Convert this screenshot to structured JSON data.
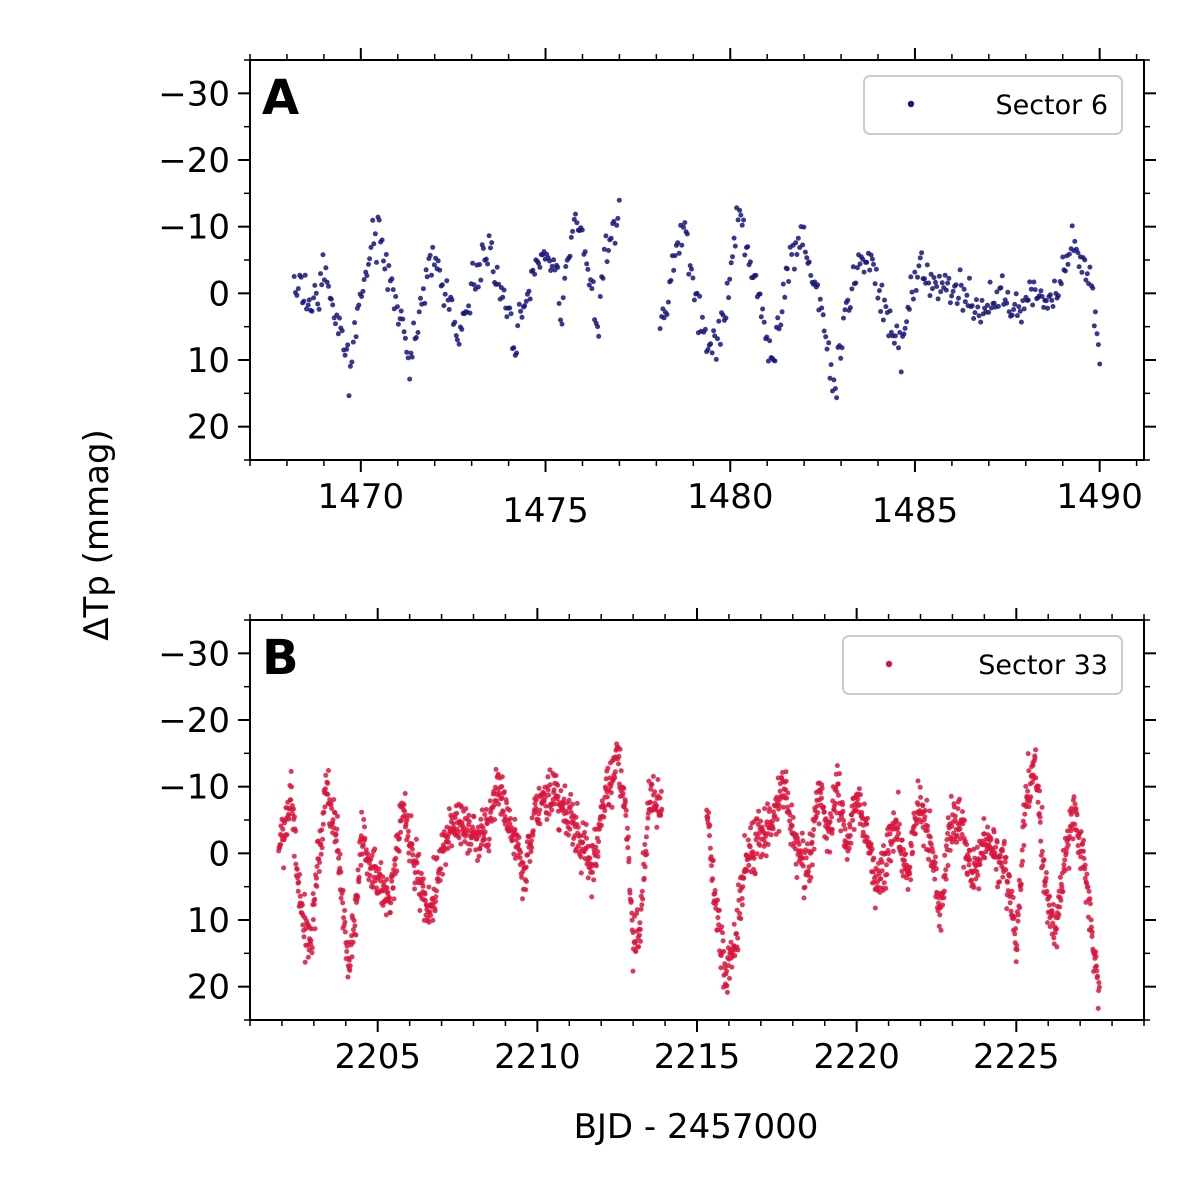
{
  "chart_data": [
    {
      "type": "scatter",
      "panel_label": "A",
      "series": [
        {
          "name": "Sector 6",
          "color": "#15157a"
        }
      ],
      "xlim": [
        1467.0,
        1491.2
      ],
      "ylim": [
        25,
        -35
      ],
      "xticks": [
        1470,
        1475,
        1480,
        1485,
        1490
      ],
      "xtick_labels": [
        "1470",
        "1475",
        "1480",
        "1485",
        "1490"
      ],
      "yticks": [
        -30,
        -20,
        -10,
        0,
        10,
        20
      ],
      "ytick_labels": [
        "−30",
        "−20",
        "−10",
        "0",
        "10",
        "20"
      ],
      "legend_position": "top-right",
      "segments": [
        {
          "x_start": 1468.2,
          "x_end": 1477.0,
          "shape": [
            [
              1468.2,
              -1
            ],
            [
              1468.7,
              1
            ],
            [
              1469.0,
              -2
            ],
            [
              1469.7,
              10
            ],
            [
              1470.4,
              -10
            ],
            [
              1470.8,
              -2
            ],
            [
              1471.3,
              10
            ],
            [
              1471.9,
              -6
            ],
            [
              1472.3,
              -1
            ],
            [
              1472.6,
              7
            ],
            [
              1473.4,
              -7
            ],
            [
              1473.7,
              -3
            ],
            [
              1474.2,
              8
            ],
            [
              1474.5,
              -1
            ],
            [
              1474.9,
              -6
            ],
            [
              1475.3,
              -4
            ],
            [
              1475.4,
              4
            ],
            [
              1475.8,
              -12
            ],
            [
              1476.1,
              -6
            ],
            [
              1476.4,
              6
            ],
            [
              1476.6,
              -5
            ],
            [
              1477.0,
              -13
            ]
          ]
        },
        {
          "x_start": 1478.1,
          "x_end": 1490.0,
          "shape": [
            [
              1478.1,
              6
            ],
            [
              1478.3,
              1
            ],
            [
              1478.5,
              -5
            ],
            [
              1478.8,
              -11
            ],
            [
              1478.9,
              -4
            ],
            [
              1479.2,
              5
            ],
            [
              1479.6,
              8
            ],
            [
              1479.9,
              2
            ],
            [
              1480.2,
              -12
            ],
            [
              1480.5,
              -7
            ],
            [
              1480.8,
              1
            ],
            [
              1481.1,
              11
            ],
            [
              1481.5,
              -1
            ],
            [
              1481.9,
              -10
            ],
            [
              1482.1,
              -4
            ],
            [
              1482.5,
              3
            ],
            [
              1482.8,
              15
            ],
            [
              1483.1,
              4
            ],
            [
              1483.4,
              -5
            ],
            [
              1483.8,
              -5
            ],
            [
              1484.2,
              3
            ],
            [
              1484.7,
              8
            ],
            [
              1484.9,
              -1
            ],
            [
              1485.2,
              -4
            ],
            [
              1485.7,
              0
            ],
            [
              1486.2,
              0
            ],
            [
              1486.8,
              3
            ],
            [
              1487.3,
              0
            ],
            [
              1487.8,
              3
            ],
            [
              1488.2,
              0
            ],
            [
              1488.8,
              1
            ],
            [
              1489.2,
              -7
            ],
            [
              1489.6,
              -4
            ],
            [
              1489.8,
              1
            ],
            [
              1490.0,
              9
            ]
          ]
        }
      ]
    },
    {
      "type": "scatter",
      "panel_label": "B",
      "series": [
        {
          "name": "Sector 33",
          "color": "#dc143c"
        }
      ],
      "xlim": [
        2201.0,
        2229.0
      ],
      "ylim": [
        25,
        -35
      ],
      "xticks": [
        2205,
        2210,
        2215,
        2220,
        2225
      ],
      "xtick_labels": [
        "2205",
        "2210",
        "2215",
        "2220",
        "2225"
      ],
      "yticks": [
        -30,
        -20,
        -10,
        0,
        10,
        20
      ],
      "ytick_labels": [
        "−30",
        "−20",
        "−10",
        "0",
        "10",
        "20"
      ],
      "legend_position": "top-right",
      "segments": [
        {
          "x_start": 2201.9,
          "x_end": 2213.9,
          "shape": [
            [
              2201.9,
              0
            ],
            [
              2202.3,
              -9
            ],
            [
              2202.6,
              10
            ],
            [
              2202.9,
              13
            ],
            [
              2203.4,
              -10
            ],
            [
              2203.7,
              -3
            ],
            [
              2204.1,
              17
            ],
            [
              2204.3,
              10
            ],
            [
              2204.5,
              -3
            ],
            [
              2205.0,
              5
            ],
            [
              2205.4,
              7
            ],
            [
              2205.8,
              -8
            ],
            [
              2206.2,
              2
            ],
            [
              2206.6,
              10
            ],
            [
              2207.1,
              -2
            ],
            [
              2207.5,
              -5
            ],
            [
              2207.9,
              -2
            ],
            [
              2208.4,
              -3
            ],
            [
              2208.8,
              -10
            ],
            [
              2209.2,
              -3
            ],
            [
              2209.6,
              3
            ],
            [
              2210.0,
              -7
            ],
            [
              2210.5,
              -9
            ],
            [
              2210.9,
              -6
            ],
            [
              2211.3,
              -3
            ],
            [
              2211.7,
              2
            ],
            [
              2212.1,
              -7
            ],
            [
              2212.5,
              -15
            ],
            [
              2212.8,
              -5
            ],
            [
              2213.0,
              14
            ],
            [
              2213.2,
              12
            ],
            [
              2213.5,
              -8
            ],
            [
              2213.9,
              -7
            ]
          ]
        },
        {
          "x_start": 2215.3,
          "x_end": 2227.6,
          "shape": [
            [
              2215.3,
              -7
            ],
            [
              2215.5,
              4
            ],
            [
              2215.9,
              19
            ],
            [
              2216.2,
              12
            ],
            [
              2216.5,
              2
            ],
            [
              2216.9,
              -2
            ],
            [
              2217.3,
              -4
            ],
            [
              2217.7,
              -11
            ],
            [
              2218.1,
              -1
            ],
            [
              2218.5,
              2
            ],
            [
              2218.8,
              -9
            ],
            [
              2219.1,
              -3
            ],
            [
              2219.4,
              -10
            ],
            [
              2219.7,
              0
            ],
            [
              2220.0,
              -9
            ],
            [
              2220.3,
              -4
            ],
            [
              2220.6,
              5
            ],
            [
              2220.9,
              1
            ],
            [
              2221.2,
              -5
            ],
            [
              2221.6,
              3
            ],
            [
              2221.9,
              -7
            ],
            [
              2222.3,
              -2
            ],
            [
              2222.6,
              10
            ],
            [
              2222.9,
              -3
            ],
            [
              2223.3,
              -5
            ],
            [
              2223.6,
              4
            ],
            [
              2224.0,
              -2
            ],
            [
              2224.3,
              -1
            ],
            [
              2224.7,
              2
            ],
            [
              2225.0,
              14
            ],
            [
              2225.3,
              -8
            ],
            [
              2225.6,
              -14
            ],
            [
              2225.9,
              5
            ],
            [
              2226.2,
              12
            ],
            [
              2226.5,
              2
            ],
            [
              2226.8,
              -6
            ],
            [
              2227.1,
              0
            ],
            [
              2227.5,
              17
            ],
            [
              2227.6,
              21
            ]
          ]
        }
      ]
    }
  ],
  "shared_ylabel": "ΔTp (mmag)",
  "shared_xlabel": "BJD - 2457000"
}
